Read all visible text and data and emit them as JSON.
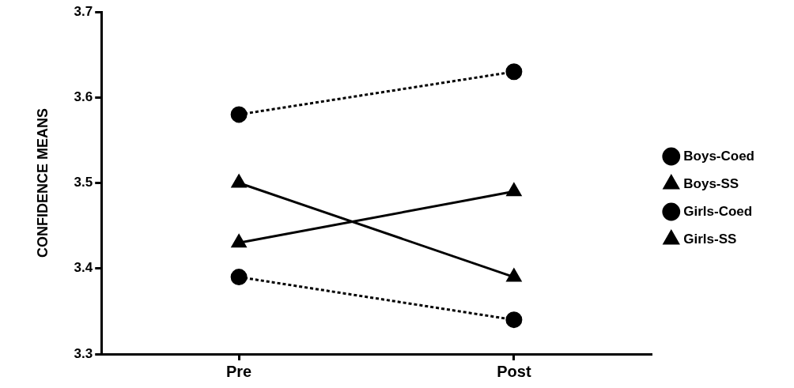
{
  "chart_data": {
    "type": "line",
    "ylabel": "CONFIDENCE MEANS",
    "categories": [
      "Pre",
      "Post"
    ],
    "ylim": [
      3.3,
      3.7
    ],
    "yticks": [
      3.3,
      3.4,
      3.5,
      3.6,
      3.7
    ],
    "grid": false,
    "legend": "right",
    "series": [
      {
        "name": "Boys-Coed",
        "color": "#000000",
        "values": [
          3.58,
          3.63
        ],
        "marker": "circle",
        "line_style": "dotted"
      },
      {
        "name": "Boys-SS",
        "color": "#000000",
        "values": [
          3.5,
          3.39
        ],
        "marker": "triangle",
        "line_style": "solid"
      },
      {
        "name": "Girls-Coed",
        "color": "#000000",
        "values": [
          3.39,
          3.34
        ],
        "marker": "circle",
        "line_style": "dotted"
      },
      {
        "name": "Girls-SS",
        "color": "#000000",
        "values": [
          3.43,
          3.49
        ],
        "marker": "triangle",
        "line_style": "solid"
      }
    ]
  }
}
